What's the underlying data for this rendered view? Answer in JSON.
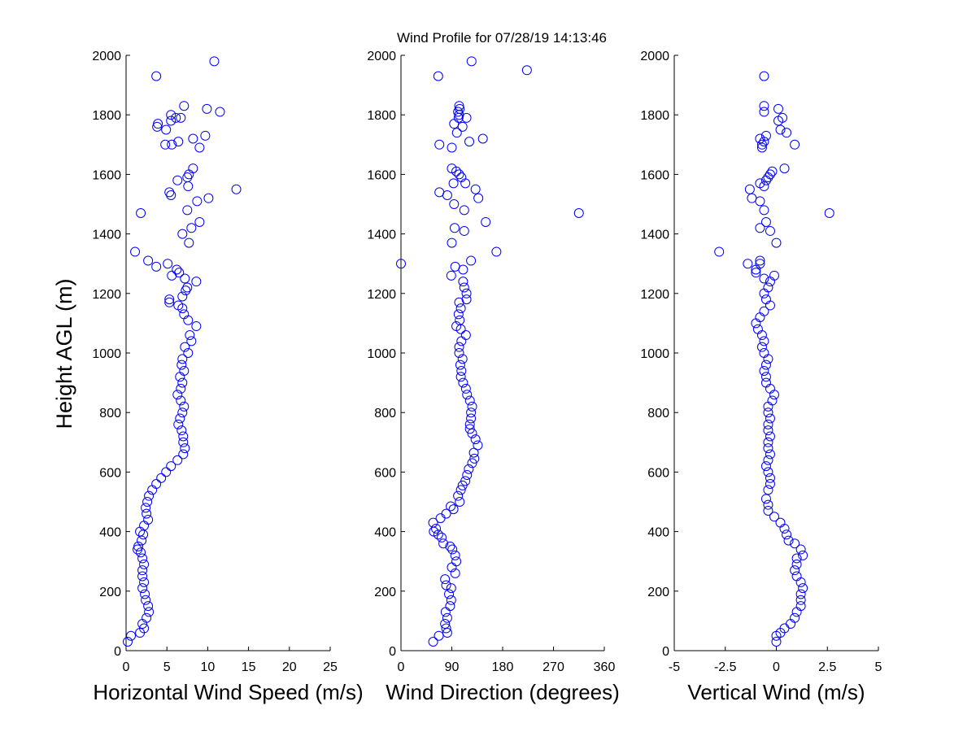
{
  "title": "Wind Profile for  07/28/19 14:13:46",
  "colors": {
    "marker": "#0000ff",
    "axis": "#000000",
    "background": "#ffffff"
  },
  "chart_data": [
    {
      "type": "scatter",
      "xlabel": "Horizontal Wind Speed (m/s)",
      "ylabel": "Height AGL (m)",
      "xlim": [
        0,
        25
      ],
      "ylim": [
        0,
        2000
      ],
      "xticks": [
        "0",
        "5",
        "10",
        "15",
        "20",
        "25"
      ],
      "xtick_values": [
        0,
        5,
        10,
        15,
        20,
        25
      ],
      "yticks": [
        "0",
        "200",
        "400",
        "600",
        "800",
        "1000",
        "1200",
        "1400",
        "1600",
        "1800",
        "2000"
      ],
      "ytick_values": [
        0,
        200,
        400,
        600,
        800,
        1000,
        1200,
        1400,
        1600,
        1800,
        2000
      ],
      "grid": false,
      "marker": "circle-open",
      "points": [
        [
          0.2,
          30
        ],
        [
          0.6,
          50
        ],
        [
          1.7,
          60
        ],
        [
          2.2,
          75
        ],
        [
          2.0,
          90
        ],
        [
          2.5,
          110
        ],
        [
          2.8,
          130
        ],
        [
          2.7,
          150
        ],
        [
          2.4,
          170
        ],
        [
          2.3,
          190
        ],
        [
          2.0,
          210
        ],
        [
          2.2,
          230
        ],
        [
          2.0,
          250
        ],
        [
          2.0,
          270
        ],
        [
          2.2,
          290
        ],
        [
          2.0,
          310
        ],
        [
          1.8,
          330
        ],
        [
          1.4,
          340
        ],
        [
          1.5,
          350
        ],
        [
          1.9,
          370
        ],
        [
          2.1,
          390
        ],
        [
          1.7,
          400
        ],
        [
          2.2,
          420
        ],
        [
          2.7,
          440
        ],
        [
          2.5,
          460
        ],
        [
          2.4,
          480
        ],
        [
          2.6,
          500
        ],
        [
          2.8,
          520
        ],
        [
          3.2,
          540
        ],
        [
          3.7,
          560
        ],
        [
          4.3,
          580
        ],
        [
          4.9,
          600
        ],
        [
          5.5,
          620
        ],
        [
          6.3,
          640
        ],
        [
          7.0,
          660
        ],
        [
          7.2,
          680
        ],
        [
          7.0,
          700
        ],
        [
          7.0,
          720
        ],
        [
          6.8,
          740
        ],
        [
          6.4,
          760
        ],
        [
          6.6,
          780
        ],
        [
          6.9,
          800
        ],
        [
          7.1,
          820
        ],
        [
          6.7,
          840
        ],
        [
          6.3,
          860
        ],
        [
          6.7,
          880
        ],
        [
          6.9,
          900
        ],
        [
          6.6,
          920
        ],
        [
          7.1,
          940
        ],
        [
          6.8,
          960
        ],
        [
          6.9,
          980
        ],
        [
          7.6,
          1000
        ],
        [
          7.2,
          1020
        ],
        [
          8.0,
          1040
        ],
        [
          7.8,
          1060
        ],
        [
          8.6,
          1090
        ],
        [
          7.6,
          1110
        ],
        [
          7.1,
          1130
        ],
        [
          6.9,
          1150
        ],
        [
          6.4,
          1160
        ],
        [
          5.3,
          1170
        ],
        [
          5.3,
          1180
        ],
        [
          6.9,
          1190
        ],
        [
          7.3,
          1210
        ],
        [
          7.5,
          1220
        ],
        [
          8.6,
          1240
        ],
        [
          7.2,
          1250
        ],
        [
          5.6,
          1260
        ],
        [
          6.5,
          1270
        ],
        [
          6.2,
          1280
        ],
        [
          3.7,
          1290
        ],
        [
          5.1,
          1300
        ],
        [
          2.7,
          1310
        ],
        [
          1.1,
          1340
        ],
        [
          7.7,
          1370
        ],
        [
          6.9,
          1400
        ],
        [
          8.0,
          1420
        ],
        [
          9.0,
          1440
        ],
        [
          1.8,
          1470
        ],
        [
          7.5,
          1480
        ],
        [
          8.7,
          1510
        ],
        [
          10.1,
          1520
        ],
        [
          5.5,
          1530
        ],
        [
          5.3,
          1540
        ],
        [
          13.5,
          1550
        ],
        [
          7.6,
          1560
        ],
        [
          6.3,
          1580
        ],
        [
          7.5,
          1590
        ],
        [
          7.7,
          1600
        ],
        [
          8.2,
          1620
        ],
        [
          5.6,
          1700
        ],
        [
          4.8,
          1700
        ],
        [
          9.0,
          1690
        ],
        [
          6.4,
          1710
        ],
        [
          8.2,
          1720
        ],
        [
          9.7,
          1730
        ],
        [
          4.9,
          1750
        ],
        [
          3.8,
          1760
        ],
        [
          3.9,
          1770
        ],
        [
          5.5,
          1780
        ],
        [
          6.7,
          1790
        ],
        [
          6.1,
          1790
        ],
        [
          5.5,
          1800
        ],
        [
          11.5,
          1810
        ],
        [
          9.9,
          1820
        ],
        [
          7.1,
          1830
        ],
        [
          3.7,
          1930
        ],
        [
          10.8,
          1980
        ]
      ]
    },
    {
      "type": "scatter",
      "xlabel": "Wind Direction (degrees)",
      "xlim": [
        0,
        360
      ],
      "ylim": [
        0,
        2000
      ],
      "xticks": [
        "0",
        "90",
        "180",
        "270",
        "360"
      ],
      "xtick_values": [
        0,
        90,
        180,
        270,
        360
      ],
      "yticks": [
        "0",
        "200",
        "400",
        "600",
        "800",
        "1000",
        "1200",
        "1400",
        "1600",
        "1800",
        "2000"
      ],
      "ytick_values": [
        0,
        200,
        400,
        600,
        800,
        1000,
        1200,
        1400,
        1600,
        1800,
        2000
      ],
      "grid": false,
      "marker": "circle-open",
      "points": [
        [
          57,
          30
        ],
        [
          67,
          50
        ],
        [
          82,
          60
        ],
        [
          80,
          75
        ],
        [
          78,
          90
        ],
        [
          82,
          110
        ],
        [
          79,
          130
        ],
        [
          87,
          150
        ],
        [
          89,
          170
        ],
        [
          85,
          190
        ],
        [
          89,
          210
        ],
        [
          80,
          220
        ],
        [
          78,
          240
        ],
        [
          96,
          260
        ],
        [
          90,
          280
        ],
        [
          98,
          300
        ],
        [
          96,
          320
        ],
        [
          91,
          340
        ],
        [
          87,
          350
        ],
        [
          75,
          360
        ],
        [
          72,
          380
        ],
        [
          66,
          390
        ],
        [
          58,
          400
        ],
        [
          62,
          410
        ],
        [
          57,
          430
        ],
        [
          70,
          445
        ],
        [
          80,
          460
        ],
        [
          93,
          475
        ],
        [
          88,
          485
        ],
        [
          104,
          500
        ],
        [
          101,
          520
        ],
        [
          106,
          540
        ],
        [
          109,
          555
        ],
        [
          114,
          570
        ],
        [
          117,
          590
        ],
        [
          120,
          610
        ],
        [
          126,
          630
        ],
        [
          130,
          645
        ],
        [
          129,
          665
        ],
        [
          136,
          690
        ],
        [
          132,
          710
        ],
        [
          126,
          730
        ],
        [
          122,
          745
        ],
        [
          122,
          760
        ],
        [
          124,
          780
        ],
        [
          124,
          800
        ],
        [
          126,
          820
        ],
        [
          122,
          840
        ],
        [
          117,
          860
        ],
        [
          115,
          880
        ],
        [
          110,
          900
        ],
        [
          106,
          920
        ],
        [
          107,
          940
        ],
        [
          105,
          960
        ],
        [
          109,
          980
        ],
        [
          103,
          1000
        ],
        [
          103,
          1020
        ],
        [
          107,
          1040
        ],
        [
          115,
          1060
        ],
        [
          106,
          1080
        ],
        [
          98,
          1090
        ],
        [
          104,
          1110
        ],
        [
          102,
          1130
        ],
        [
          106,
          1150
        ],
        [
          103,
          1170
        ],
        [
          116,
          1180
        ],
        [
          116,
          1200
        ],
        [
          112,
          1220
        ],
        [
          110,
          1240
        ],
        [
          89,
          1260
        ],
        [
          110,
          1280
        ],
        [
          96,
          1290
        ],
        [
          124,
          1310
        ],
        [
          0,
          1300
        ],
        [
          169,
          1340
        ],
        [
          90,
          1370
        ],
        [
          112,
          1410
        ],
        [
          95,
          1420
        ],
        [
          150,
          1440
        ],
        [
          315,
          1470
        ],
        [
          112,
          1480
        ],
        [
          94,
          1500
        ],
        [
          137,
          1520
        ],
        [
          82,
          1530
        ],
        [
          68,
          1540
        ],
        [
          132,
          1550
        ],
        [
          93,
          1570
        ],
        [
          114,
          1570
        ],
        [
          107,
          1590
        ],
        [
          103,
          1600
        ],
        [
          98,
          1610
        ],
        [
          90,
          1620
        ],
        [
          121,
          1710
        ],
        [
          145,
          1720
        ],
        [
          68,
          1700
        ],
        [
          90,
          1690
        ],
        [
          99,
          1740
        ],
        [
          109,
          1760
        ],
        [
          94,
          1770
        ],
        [
          102,
          1790
        ],
        [
          103,
          1800
        ],
        [
          116,
          1790
        ],
        [
          101,
          1810
        ],
        [
          104,
          1820
        ],
        [
          103,
          1830
        ],
        [
          223,
          1950
        ],
        [
          66,
          1930
        ],
        [
          125,
          1980
        ]
      ]
    },
    {
      "type": "scatter",
      "xlabel": "Vertical Wind (m/s)",
      "xlim": [
        -5,
        5
      ],
      "ylim": [
        0,
        2000
      ],
      "xticks": [
        "-5",
        "-2.5",
        "0",
        "2.5",
        "5"
      ],
      "xtick_values": [
        -5,
        -2.5,
        0,
        2.5,
        5
      ],
      "yticks": [
        "0",
        "200",
        "400",
        "600",
        "800",
        "1000",
        "1200",
        "1400",
        "1600",
        "1800",
        "2000"
      ],
      "ytick_values": [
        0,
        200,
        400,
        600,
        800,
        1000,
        1200,
        1400,
        1600,
        1800,
        2000
      ],
      "grid": false,
      "marker": "circle-open",
      "points": [
        [
          0.0,
          30
        ],
        [
          0.0,
          50
        ],
        [
          0.2,
          60
        ],
        [
          0.4,
          75
        ],
        [
          0.7,
          90
        ],
        [
          0.9,
          110
        ],
        [
          1.0,
          130
        ],
        [
          1.2,
          150
        ],
        [
          1.2,
          170
        ],
        [
          1.2,
          190
        ],
        [
          1.3,
          210
        ],
        [
          1.2,
          230
        ],
        [
          1.0,
          250
        ],
        [
          0.9,
          270
        ],
        [
          1.0,
          290
        ],
        [
          1.0,
          310
        ],
        [
          1.3,
          320
        ],
        [
          1.2,
          340
        ],
        [
          0.9,
          360
        ],
        [
          0.6,
          370
        ],
        [
          0.5,
          390
        ],
        [
          0.4,
          410
        ],
        [
          0.2,
          430
        ],
        [
          -0.1,
          450
        ],
        [
          -0.4,
          470
        ],
        [
          -0.4,
          490
        ],
        [
          -0.5,
          510
        ],
        [
          -0.4,
          540
        ],
        [
          -0.3,
          560
        ],
        [
          -0.3,
          580
        ],
        [
          -0.4,
          600
        ],
        [
          -0.5,
          620
        ],
        [
          -0.4,
          640
        ],
        [
          -0.3,
          660
        ],
        [
          -0.4,
          680
        ],
        [
          -0.4,
          700
        ],
        [
          -0.3,
          720
        ],
        [
          -0.4,
          740
        ],
        [
          -0.4,
          760
        ],
        [
          -0.3,
          780
        ],
        [
          -0.4,
          800
        ],
        [
          -0.4,
          820
        ],
        [
          -0.2,
          840
        ],
        [
          -0.1,
          860
        ],
        [
          -0.3,
          880
        ],
        [
          -0.5,
          900
        ],
        [
          -0.5,
          920
        ],
        [
          -0.6,
          940
        ],
        [
          -0.5,
          960
        ],
        [
          -0.4,
          980
        ],
        [
          -0.6,
          1000
        ],
        [
          -0.7,
          1020
        ],
        [
          -0.6,
          1040
        ],
        [
          -0.7,
          1060
        ],
        [
          -0.9,
          1080
        ],
        [
          -1.0,
          1100
        ],
        [
          -0.8,
          1120
        ],
        [
          -0.6,
          1140
        ],
        [
          -0.3,
          1160
        ],
        [
          -0.5,
          1180
        ],
        [
          -0.6,
          1200
        ],
        [
          -0.4,
          1220
        ],
        [
          -0.3,
          1240
        ],
        [
          -0.6,
          1250
        ],
        [
          -0.1,
          1260
        ],
        [
          -1.0,
          1270
        ],
        [
          -1.0,
          1280
        ],
        [
          -0.8,
          1300
        ],
        [
          -1.4,
          1300
        ],
        [
          -0.8,
          1310
        ],
        [
          -2.8,
          1340
        ],
        [
          0.0,
          1370
        ],
        [
          -0.3,
          1410
        ],
        [
          -0.8,
          1420
        ],
        [
          -0.5,
          1440
        ],
        [
          2.6,
          1470
        ],
        [
          -0.6,
          1480
        ],
        [
          -1.2,
          1520
        ],
        [
          -0.8,
          1510
        ],
        [
          -1.3,
          1550
        ],
        [
          -0.6,
          1560
        ],
        [
          -0.8,
          1570
        ],
        [
          -0.4,
          1590
        ],
        [
          -0.3,
          1600
        ],
        [
          -0.5,
          1580
        ],
        [
          -0.2,
          1610
        ],
        [
          0.4,
          1620
        ],
        [
          0.9,
          1700
        ],
        [
          -0.7,
          1700
        ],
        [
          -0.7,
          1690
        ],
        [
          -0.8,
          1720
        ],
        [
          -0.6,
          1710
        ],
        [
          -0.5,
          1730
        ],
        [
          0.5,
          1740
        ],
        [
          0.2,
          1750
        ],
        [
          0.1,
          1780
        ],
        [
          0.3,
          1790
        ],
        [
          -0.6,
          1810
        ],
        [
          0.1,
          1820
        ],
        [
          -0.6,
          1830
        ],
        [
          -0.6,
          1930
        ]
      ]
    }
  ]
}
